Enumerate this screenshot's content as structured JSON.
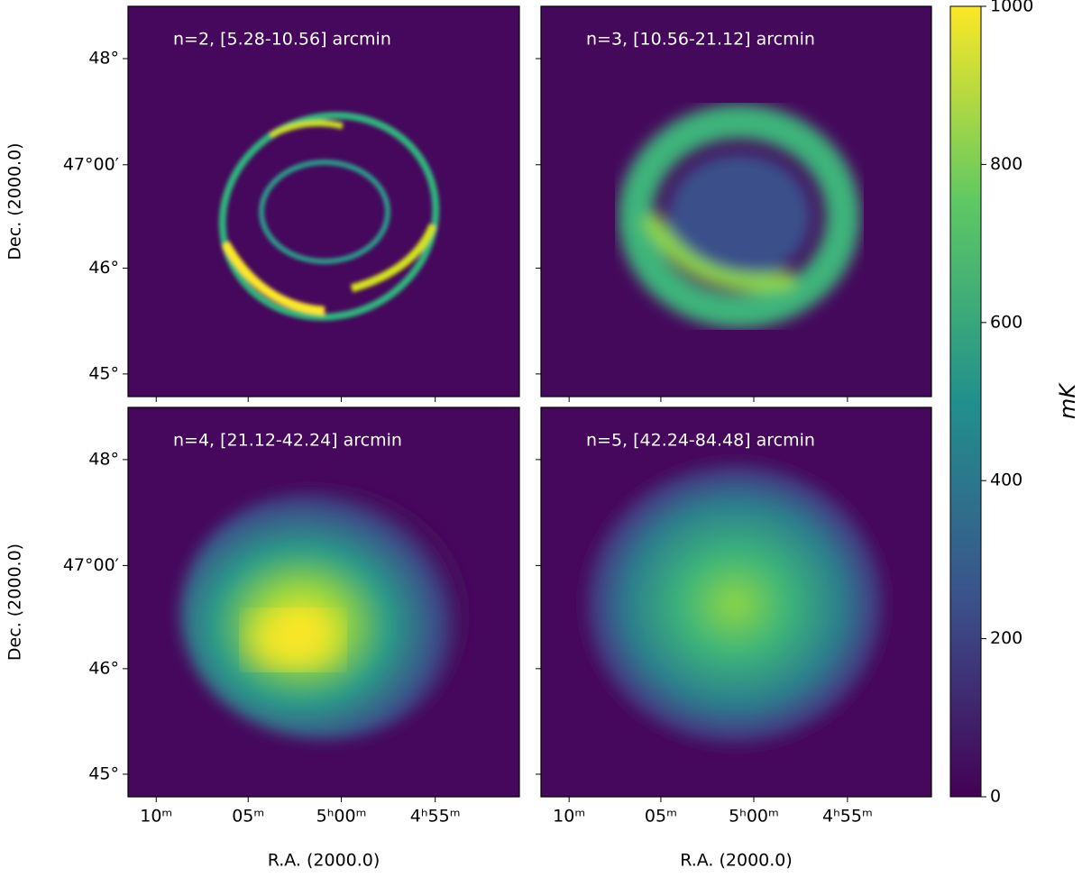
{
  "chart_data": [
    {
      "type": "image",
      "title": "n=2, [5.28-10.56] arcmin",
      "ylabel": "Dec. (2000.0)",
      "yticklabels": [
        "48°",
        "47°00′",
        "46°",
        "45°"
      ]
    },
    {
      "type": "image",
      "title": "n=3, [10.56-21.12] arcmin"
    },
    {
      "type": "image",
      "title": "n=4, [21.12-42.24] arcmin",
      "ylabel": "Dec. (2000.0)",
      "yticklabels": [
        "48°",
        "47°00′",
        "46°",
        "45°"
      ],
      "xlabel": "R.A. (2000.0)",
      "xticklabels": [
        "10ᵐ",
        "05ᵐ",
        "5ʰ00ᵐ",
        "4ʰ55ᵐ"
      ]
    },
    {
      "type": "image",
      "title": "n=5, [42.24-84.48] arcmin",
      "xlabel": "R.A. (2000.0)",
      "xticklabels": [
        "10ᵐ",
        "05ᵐ",
        "5ʰ00ᵐ",
        "4ʰ55ᵐ"
      ]
    },
    {
      "type": "colorbar",
      "label": "mK",
      "ylim": [
        0,
        1000
      ],
      "yticks": [
        0,
        200,
        400,
        600,
        800,
        1000
      ]
    }
  ]
}
